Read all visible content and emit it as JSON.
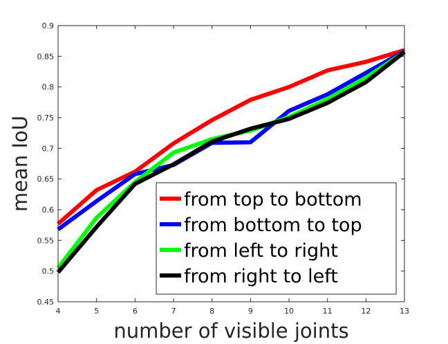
{
  "chart_data": {
    "type": "line",
    "title": "",
    "xlabel": "number of visible joints",
    "ylabel": "mean IoU",
    "x": [
      4,
      5,
      6,
      7,
      8,
      9,
      10,
      11,
      12,
      13
    ],
    "xlim": [
      4,
      13
    ],
    "ylim": [
      0.45,
      0.9
    ],
    "xticks": [
      "4",
      "5",
      "6",
      "7",
      "8",
      "9",
      "10",
      "11",
      "12",
      "13"
    ],
    "yticks": [
      "0.45",
      "0.5",
      "0.55",
      "0.6",
      "0.65",
      "0.7",
      "0.75",
      "0.8",
      "0.85",
      "0.9"
    ],
    "grid": false,
    "legend_position": "bottom-right",
    "series": [
      {
        "name": "from top to bottom",
        "color": "#ff0000",
        "values": [
          0.577,
          0.632,
          0.662,
          0.708,
          0.746,
          0.779,
          0.8,
          0.827,
          0.841,
          0.86
        ]
      },
      {
        "name": "from bottom to top",
        "color": "#0000ff",
        "values": [
          0.568,
          0.614,
          0.658,
          0.673,
          0.709,
          0.71,
          0.761,
          0.788,
          0.823,
          0.858
        ]
      },
      {
        "name": "from left to right",
        "color": "#00ff00",
        "values": [
          0.505,
          0.587,
          0.645,
          0.693,
          0.715,
          0.729,
          0.751,
          0.78,
          0.815,
          0.857
        ]
      },
      {
        "name": "from right to left",
        "color": "#000000",
        "values": [
          0.498,
          0.572,
          0.642,
          0.674,
          0.711,
          0.732,
          0.748,
          0.774,
          0.808,
          0.857
        ]
      }
    ]
  }
}
